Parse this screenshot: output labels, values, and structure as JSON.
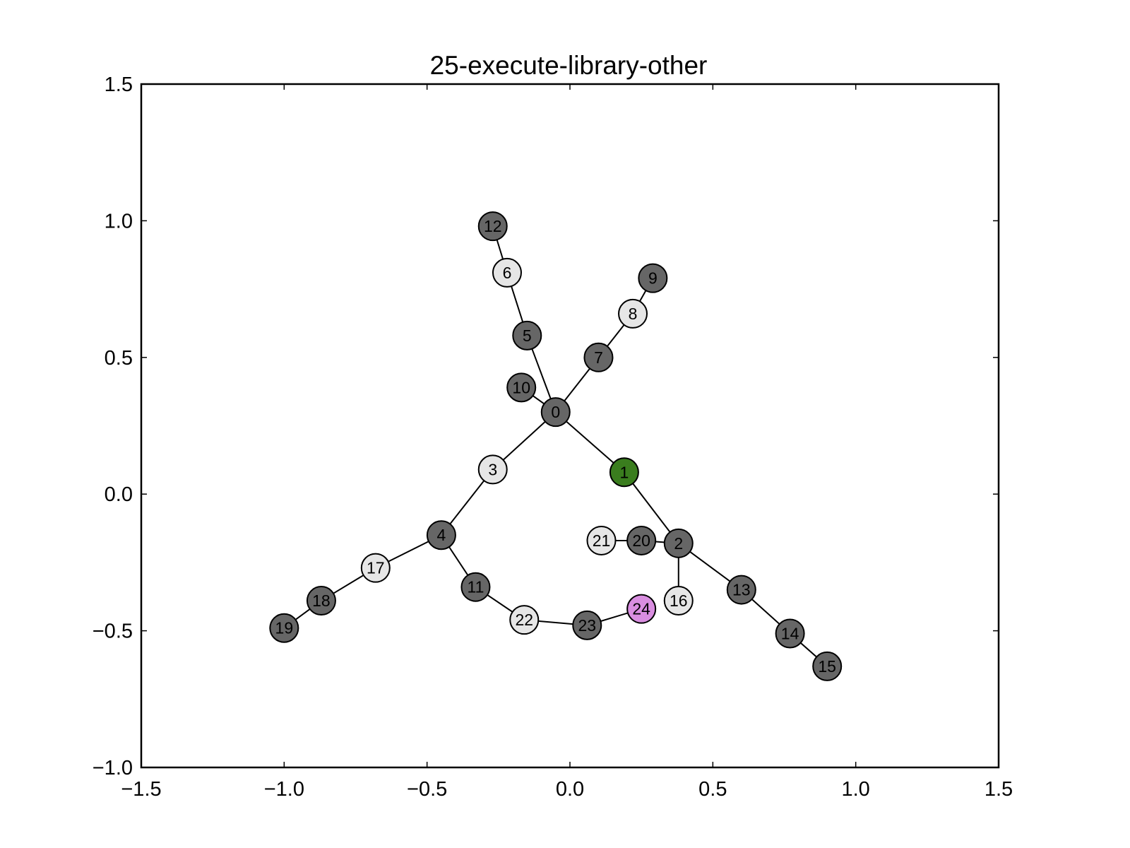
{
  "chart_data": {
    "type": "network",
    "title": "25-execute-library-other",
    "xlim": [
      -1.5,
      1.5
    ],
    "ylim": [
      -1.0,
      1.5
    ],
    "xticks": [
      {
        "value": -1.5,
        "label": "−1.5"
      },
      {
        "value": -1.0,
        "label": "−1.0"
      },
      {
        "value": -0.5,
        "label": "−0.5"
      },
      {
        "value": 0.0,
        "label": "0.0"
      },
      {
        "value": 0.5,
        "label": "0.5"
      },
      {
        "value": 1.0,
        "label": "1.0"
      },
      {
        "value": 1.5,
        "label": "1.5"
      }
    ],
    "yticks": [
      {
        "value": -1.0,
        "label": "−1.0"
      },
      {
        "value": -0.5,
        "label": "−0.5"
      },
      {
        "value": 0.0,
        "label": "0.0"
      },
      {
        "value": 0.5,
        "label": "0.5"
      },
      {
        "value": 1.0,
        "label": "1.0"
      },
      {
        "value": 1.5,
        "label": "1.5"
      }
    ],
    "colors": {
      "dark": "#666666",
      "light": "#e6e6e6",
      "green": "#3a7d1e",
      "pink": "#d98ee0"
    },
    "nodes": [
      {
        "id": "0",
        "x": -0.05,
        "y": 0.3,
        "color": "dark"
      },
      {
        "id": "1",
        "x": 0.19,
        "y": 0.08,
        "color": "green"
      },
      {
        "id": "2",
        "x": 0.38,
        "y": -0.18,
        "color": "dark"
      },
      {
        "id": "3",
        "x": -0.27,
        "y": 0.09,
        "color": "light"
      },
      {
        "id": "4",
        "x": -0.45,
        "y": -0.15,
        "color": "dark"
      },
      {
        "id": "5",
        "x": -0.15,
        "y": 0.58,
        "color": "dark"
      },
      {
        "id": "6",
        "x": -0.22,
        "y": 0.81,
        "color": "light"
      },
      {
        "id": "7",
        "x": 0.1,
        "y": 0.5,
        "color": "dark"
      },
      {
        "id": "8",
        "x": 0.22,
        "y": 0.66,
        "color": "light"
      },
      {
        "id": "9",
        "x": 0.29,
        "y": 0.79,
        "color": "dark"
      },
      {
        "id": "10",
        "x": -0.17,
        "y": 0.39,
        "color": "dark"
      },
      {
        "id": "11",
        "x": -0.33,
        "y": -0.34,
        "color": "dark"
      },
      {
        "id": "12",
        "x": -0.27,
        "y": 0.98,
        "color": "dark"
      },
      {
        "id": "13",
        "x": 0.6,
        "y": -0.35,
        "color": "dark"
      },
      {
        "id": "14",
        "x": 0.77,
        "y": -0.51,
        "color": "dark"
      },
      {
        "id": "15",
        "x": 0.9,
        "y": -0.63,
        "color": "dark"
      },
      {
        "id": "16",
        "x": 0.38,
        "y": -0.39,
        "color": "light"
      },
      {
        "id": "17",
        "x": -0.68,
        "y": -0.27,
        "color": "light"
      },
      {
        "id": "18",
        "x": -0.87,
        "y": -0.39,
        "color": "dark"
      },
      {
        "id": "19",
        "x": -1.0,
        "y": -0.49,
        "color": "dark"
      },
      {
        "id": "20",
        "x": 0.25,
        "y": -0.17,
        "color": "dark"
      },
      {
        "id": "21",
        "x": 0.11,
        "y": -0.17,
        "color": "light"
      },
      {
        "id": "22",
        "x": -0.16,
        "y": -0.46,
        "color": "light"
      },
      {
        "id": "23",
        "x": 0.06,
        "y": -0.48,
        "color": "dark"
      },
      {
        "id": "24",
        "x": 0.25,
        "y": -0.42,
        "color": "pink"
      }
    ],
    "edges": [
      [
        "0",
        "1"
      ],
      [
        "1",
        "2"
      ],
      [
        "0",
        "3"
      ],
      [
        "3",
        "4"
      ],
      [
        "0",
        "5"
      ],
      [
        "5",
        "6"
      ],
      [
        "6",
        "12"
      ],
      [
        "0",
        "7"
      ],
      [
        "7",
        "8"
      ],
      [
        "8",
        "9"
      ],
      [
        "0",
        "10"
      ],
      [
        "4",
        "11"
      ],
      [
        "11",
        "22"
      ],
      [
        "22",
        "23"
      ],
      [
        "23",
        "24"
      ],
      [
        "2",
        "13"
      ],
      [
        "13",
        "14"
      ],
      [
        "14",
        "15"
      ],
      [
        "2",
        "16"
      ],
      [
        "2",
        "20"
      ],
      [
        "20",
        "21"
      ],
      [
        "4",
        "17"
      ],
      [
        "17",
        "18"
      ],
      [
        "18",
        "19"
      ]
    ]
  }
}
